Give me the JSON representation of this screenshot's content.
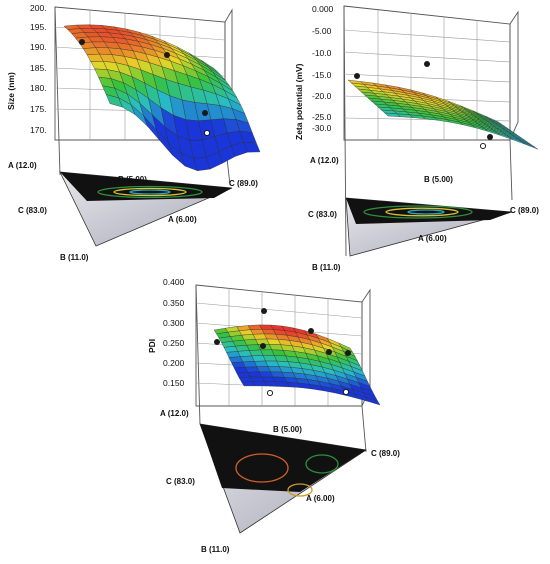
{
  "chart_data": [
    {
      "type": "surface",
      "ylabel": "Size (nm)",
      "yticks": [
        "200.",
        "195.",
        "190.",
        "185.",
        "180.",
        "175.",
        "170."
      ],
      "vertices": {
        "A": "A (12.0)",
        "B_top": "B (5.00)",
        "C_right": "C (89.0)",
        "C_left": "C (83.0)",
        "A_low": "A (6.00)",
        "B_bottom": "B (11.0)"
      }
    },
    {
      "type": "surface",
      "ylabel": "Zeta potential  (mV)",
      "yticks": [
        "0.000",
        "-5.00",
        "-10.0",
        "-15.0",
        "-20.0",
        "-25.0",
        "-30.0"
      ],
      "vertices": {
        "A": "A (12.0)",
        "B_top": "B (5.00)",
        "C_right": "C (89.0)",
        "C_left": "C (83.0)",
        "A_low": "A (6.00)",
        "B_bottom": "B (11.0)"
      }
    },
    {
      "type": "surface",
      "ylabel": "PDI",
      "yticks": [
        "0.400",
        "0.350",
        "0.300",
        "0.250",
        "0.200",
        "0.150"
      ],
      "vertices": {
        "A": "A (12.0)",
        "B_top": "B (5.00)",
        "C_right": "C (89.0)",
        "C_left": "C (83.0)",
        "A_low": "A (6.00)",
        "B_bottom": "B (11.0)"
      }
    }
  ],
  "colors": {
    "low": "#1a36d8",
    "mid": "#36c23a",
    "high": "#e8342a",
    "contour_base": "#101010"
  }
}
